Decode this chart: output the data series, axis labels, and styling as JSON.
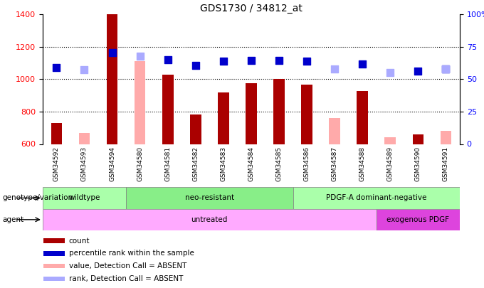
{
  "title": "GDS1730 / 34812_at",
  "samples": [
    "GSM34592",
    "GSM34593",
    "GSM34594",
    "GSM34580",
    "GSM34581",
    "GSM34582",
    "GSM34583",
    "GSM34584",
    "GSM34585",
    "GSM34586",
    "GSM34587",
    "GSM34588",
    "GSM34589",
    "GSM34590",
    "GSM34591"
  ],
  "count_values": [
    730,
    null,
    1400,
    null,
    1030,
    780,
    920,
    975,
    1000,
    965,
    null,
    925,
    null,
    660,
    null
  ],
  "count_absent": [
    null,
    670,
    null,
    1110,
    null,
    null,
    null,
    null,
    null,
    null,
    760,
    null,
    640,
    null,
    680
  ],
  "rank_values": [
    1070,
    null,
    1165,
    null,
    1120,
    1085,
    1110,
    1115,
    1115,
    1110,
    null,
    1095,
    null,
    1050,
    1065
  ],
  "rank_absent": [
    null,
    1060,
    null,
    1140,
    null,
    null,
    null,
    null,
    null,
    null,
    1065,
    null,
    1040,
    null,
    1065
  ],
  "ylim_left": [
    600,
    1400
  ],
  "yticks_left": [
    600,
    800,
    1000,
    1200,
    1400
  ],
  "ytick_labels_right": [
    "0",
    "25",
    "50",
    "75",
    "100%"
  ],
  "bar_color_present": "#aa0000",
  "bar_color_absent": "#ffaaaa",
  "dot_color_present": "#0000cc",
  "dot_color_absent": "#aaaaff",
  "bar_width": 0.4,
  "dot_size": 45,
  "cell_bg": "#cccccc",
  "geno_groups": [
    {
      "label": "wildtype",
      "start": 0,
      "end": 3
    },
    {
      "label": "neo-resistant",
      "start": 3,
      "end": 9
    },
    {
      "label": "PDGF-A dominant-negative",
      "start": 9,
      "end": 15
    }
  ],
  "agent_groups": [
    {
      "label": "untreated",
      "start": 0,
      "end": 12,
      "color": "#ffaaff"
    },
    {
      "label": "exogenous PDGF",
      "start": 12,
      "end": 15,
      "color": "#dd44dd"
    }
  ],
  "geno_color": "#aaffaa",
  "legend_items": [
    {
      "label": "count",
      "color": "#aa0000"
    },
    {
      "label": "percentile rank within the sample",
      "color": "#0000cc"
    },
    {
      "label": "value, Detection Call = ABSENT",
      "color": "#ffaaaa"
    },
    {
      "label": "rank, Detection Call = ABSENT",
      "color": "#aaaaff"
    }
  ]
}
